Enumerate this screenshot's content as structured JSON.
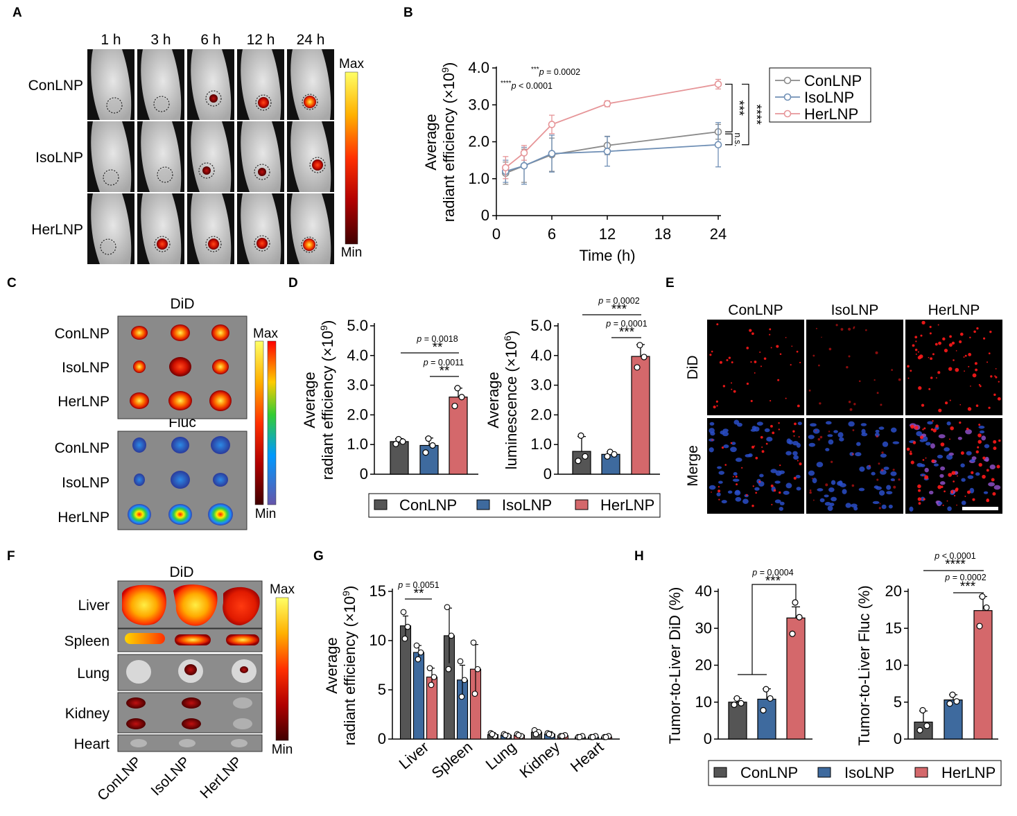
{
  "panels": {
    "A": {
      "letter": "A",
      "times": [
        "1 h",
        "3 h",
        "6 h",
        "12 h",
        "24 h"
      ],
      "rows": [
        "ConLNP",
        "IsoLNP",
        "HerLNP"
      ],
      "scale_max": "Max",
      "scale_min": "Min"
    },
    "B": {
      "letter": "B",
      "annotation_1_stars": "***",
      "annotation_1_text": "= 0.0002",
      "annotation_2_stars": "****",
      "annotation_2_text": "< 0.0001",
      "bracket_labels": [
        "***",
        "****",
        "n.s."
      ]
    },
    "C": {
      "letter": "C",
      "title_top": "DiD",
      "title_bottom": "Fluc",
      "rows": [
        "ConLNP",
        "IsoLNP",
        "HerLNP"
      ],
      "scale_max": "Max",
      "scale_min": "Min"
    },
    "D": {
      "letter": "D",
      "sig_left": [
        {
          "p": "= 0.0018",
          "stars": "**"
        },
        {
          "p": "= 0.0011",
          "stars": "**"
        }
      ],
      "sig_right": [
        {
          "p": "= 0.0002",
          "stars": "***"
        },
        {
          "p": "= 0.0001",
          "stars": "***"
        }
      ]
    },
    "E": {
      "letter": "E",
      "columns": [
        "ConLNP",
        "IsoLNP",
        "HerLNP"
      ],
      "rows": [
        "DiD",
        "Merge"
      ]
    },
    "F": {
      "letter": "F",
      "title": "DiD",
      "organs": [
        "Liver",
        "Spleen",
        "Lung",
        "Kidney",
        "Heart"
      ],
      "groups": [
        "ConLNP",
        "IsoLNP",
        "HerLNP"
      ],
      "scale_max": "Max",
      "scale_min": "Min"
    },
    "G": {
      "letter": "G",
      "sig": {
        "p": "= 0.0051",
        "stars": "**"
      }
    },
    "H": {
      "letter": "H",
      "sig_left": {
        "p": "= 0.0004",
        "stars": "***"
      },
      "sig_right": [
        {
          "p": "< 0.0001",
          "stars": "****"
        },
        {
          "p": "= 0.0002",
          "stars": "***"
        }
      ]
    }
  },
  "legend": [
    "ConLNP",
    "IsoLNP",
    "HerLNP"
  ],
  "colors": {
    "ConLNP": "#555555",
    "IsoLNP": "#3e6a9e",
    "HerLNP": "#d4686b",
    "B_ConLNP": "#8a8a8a",
    "B_IsoLNP": "#6f8fb5",
    "B_HerLNP": "#e69598"
  },
  "chart_data": [
    {
      "id": "B",
      "type": "line",
      "xlabel": "Time (h)",
      "ylabel_1": "Average",
      "ylabel_2": "radiant efficiency (×10",
      "ylabel_sup": "9",
      "xlim": [
        0,
        24
      ],
      "ylim": [
        0,
        4.0
      ],
      "xticks": [
        "0",
        "6",
        "12",
        "18",
        "24"
      ],
      "yticks": [
        "0",
        "1.0",
        "2.0",
        "3.0",
        "4.0"
      ],
      "x": [
        1,
        3,
        6,
        12,
        24
      ],
      "legend_position": "top-right",
      "series": [
        {
          "name": "ConLNP",
          "values": [
            1.15,
            1.35,
            1.65,
            1.9,
            2.27
          ],
          "err": [
            0.3,
            0.45,
            0.45,
            0.25,
            0.2
          ]
        },
        {
          "name": "IsoLNP",
          "values": [
            1.2,
            1.35,
            1.68,
            1.74,
            1.92
          ],
          "err": [
            0.3,
            0.5,
            0.5,
            0.4,
            0.6
          ]
        },
        {
          "name": "HerLNP",
          "values": [
            1.3,
            1.7,
            2.47,
            3.03,
            3.56
          ],
          "err": [
            0.3,
            0.2,
            0.25,
            0.08,
            0.13
          ]
        }
      ]
    },
    {
      "id": "D1",
      "type": "bar",
      "ylabel_1": "Average",
      "ylabel_2": "radiant efficiency (×10",
      "ylabel_sup": "9",
      "ylim": [
        0,
        5.0
      ],
      "yticks": [
        "0",
        "1.0",
        "2.0",
        "3.0",
        "4.0",
        "5.0"
      ],
      "categories": [
        "ConLNP",
        "IsoLNP",
        "HerLNP"
      ],
      "values": [
        1.1,
        0.97,
        2.6
      ],
      "err": [
        0.1,
        0.25,
        0.3
      ],
      "points": [
        [
          1.18,
          1.1,
          1.02
        ],
        [
          1.2,
          0.97,
          0.73
        ],
        [
          2.9,
          2.6,
          2.3
        ]
      ]
    },
    {
      "id": "D2",
      "type": "bar",
      "ylabel_1": "Average",
      "ylabel_2": "luminescence (×10",
      "ylabel_sup": "6",
      "ylim": [
        0,
        5.0
      ],
      "yticks": [
        "0",
        "1.0",
        "2.0",
        "3.0",
        "4.0",
        "5.0"
      ],
      "categories": [
        "ConLNP",
        "IsoLNP",
        "HerLNP"
      ],
      "values": [
        0.77,
        0.67,
        3.97
      ],
      "err": [
        0.5,
        0.08,
        0.4
      ],
      "points": [
        [
          1.3,
          0.6,
          0.45
        ],
        [
          0.75,
          0.67,
          0.6
        ],
        [
          4.35,
          3.95,
          3.6
        ]
      ]
    },
    {
      "id": "G",
      "type": "bar",
      "ylabel_1": "Average",
      "ylabel_2": "radiant efficiency (×10",
      "ylabel_sup": "9",
      "ylim": [
        0,
        15
      ],
      "yticks": [
        "0",
        "5",
        "10",
        "15"
      ],
      "categories": [
        "Liver",
        "Spleen",
        "Lung",
        "Kidney",
        "Heart"
      ],
      "series": [
        {
          "name": "ConLNP",
          "values": [
            11.5,
            10.5,
            0.45,
            0.7,
            0.2
          ],
          "err": [
            1.0,
            2.8,
            0.2,
            0.25,
            0.1
          ]
        },
        {
          "name": "IsoLNP",
          "values": [
            8.8,
            6.0,
            0.4,
            0.5,
            0.2
          ],
          "err": [
            0.7,
            1.5,
            0.2,
            0.25,
            0.1
          ]
        },
        {
          "name": "HerLNP",
          "values": [
            6.3,
            7.1,
            0.4,
            0.35,
            0.2
          ],
          "err": [
            0.9,
            2.5,
            0.15,
            0.15,
            0.1
          ]
        }
      ]
    },
    {
      "id": "H1",
      "type": "bar",
      "ylabel": "Tumor-to-Liver DiD (%)",
      "ylim": [
        0,
        40
      ],
      "yticks": [
        "0",
        "10",
        "20",
        "30",
        "40"
      ],
      "categories": [
        "ConLNP",
        "IsoLNP",
        "HerLNP"
      ],
      "values": [
        10,
        10.8,
        32.8
      ],
      "err": [
        1.0,
        2.8,
        3.0
      ],
      "points": [
        [
          11.0,
          9.7,
          9.3
        ],
        [
          13.5,
          11.0,
          7.8
        ],
        [
          37.0,
          33.0,
          28.5
        ]
      ]
    },
    {
      "id": "H2",
      "type": "bar",
      "ylabel": "Tumor-to-Liver Fluc (%)",
      "ylim": [
        0,
        20
      ],
      "yticks": [
        "0",
        "5",
        "10",
        "15",
        "20"
      ],
      "categories": [
        "ConLNP",
        "IsoLNP",
        "HerLNP"
      ],
      "values": [
        2.3,
        5.3,
        17.4
      ],
      "err": [
        1.5,
        0.7,
        1.9
      ],
      "points": [
        [
          3.9,
          1.8,
          1.2
        ],
        [
          6.0,
          5.1,
          4.8
        ],
        [
          19.3,
          17.8,
          15.3
        ]
      ]
    }
  ]
}
